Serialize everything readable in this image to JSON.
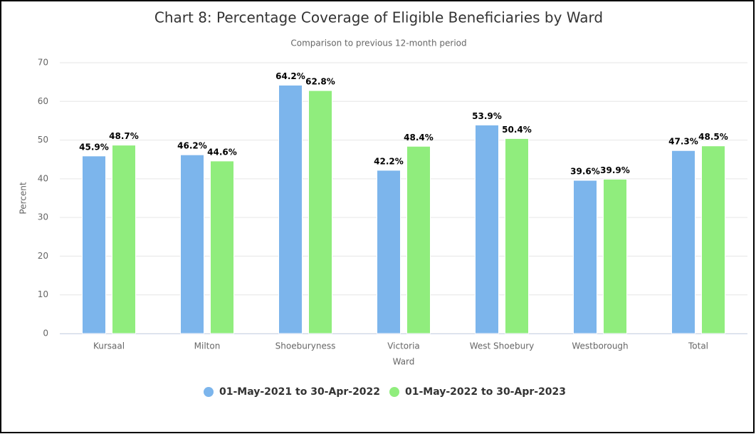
{
  "chart_data": {
    "type": "bar",
    "title": "Chart 8: Percentage Coverage of Eligible Beneficiaries by Ward",
    "subtitle": "Comparison to previous 12-month period",
    "x_label": "Ward",
    "y_label": "Percent",
    "categories": [
      "Kursaal",
      "Milton",
      "Shoeburyness",
      "Victoria",
      "West Shoebury",
      "Westborough",
      "Total"
    ],
    "series": [
      {
        "name": "01-May-2021 to 30-Apr-2022",
        "color": "#7cb5ec",
        "values": [
          45.9,
          46.2,
          64.2,
          42.2,
          53.9,
          39.6,
          47.3
        ],
        "value_labels": [
          "45.9%",
          "46.2%",
          "64.2%",
          "42.2%",
          "53.9%",
          "39.6%",
          "47.3%"
        ]
      },
      {
        "name": "01-May-2022 to 30-Apr-2023",
        "color": "#90ed7d",
        "values": [
          48.7,
          44.6,
          62.8,
          48.4,
          50.4,
          39.9,
          48.5
        ],
        "value_labels": [
          "48.7%",
          "44.6%",
          "62.8%",
          "48.4%",
          "50.4%",
          "39.9%",
          "48.5%"
        ]
      }
    ],
    "ylim": [
      0,
      70
    ],
    "yticks": [
      0,
      10,
      20,
      30,
      40,
      50,
      60,
      70
    ],
    "grid": true,
    "legend": "bottom"
  }
}
